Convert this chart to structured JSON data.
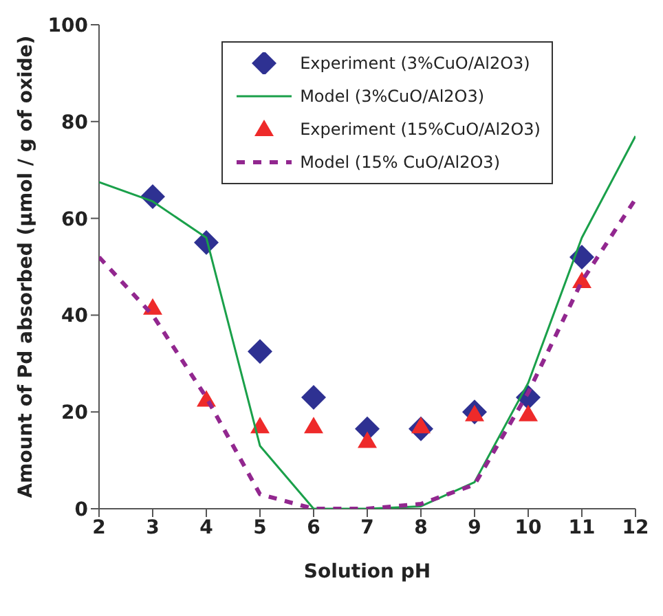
{
  "chart_data": {
    "type": "line",
    "xlabel": "Solution pH",
    "ylabel": "Amount of Pd absorbed (μmol / g of oxide)",
    "xlim": [
      2,
      12
    ],
    "xticks": [
      2,
      3,
      4,
      5,
      6,
      7,
      8,
      9,
      10,
      11,
      12
    ],
    "ylim": [
      0,
      100
    ],
    "yticks": [
      0,
      20,
      40,
      60,
      80,
      100
    ],
    "grid": false,
    "legend": "top right",
    "series": [
      {
        "name": "Experiment (3%CuO/Al2O3)",
        "type": "scatter",
        "marker": "diamond",
        "color": "#2e3192",
        "x": [
          3,
          4,
          5,
          6,
          7,
          8,
          9,
          10,
          11
        ],
        "values": [
          64.5,
          55,
          32.5,
          23,
          16.5,
          16.5,
          20,
          23,
          52
        ]
      },
      {
        "name": "Model (3%CuO/Al2O3)",
        "marker": "none",
        "line_style": "solid",
        "color": "#1aa04a",
        "x": [
          2,
          3,
          4,
          5,
          6,
          7,
          8,
          9,
          10,
          11,
          12
        ],
        "values": [
          67.5,
          63.5,
          56,
          13,
          0,
          0,
          0.5,
          5.5,
          26,
          56,
          77
        ]
      },
      {
        "name": "Experiment (15%CuO/Al2O3)",
        "type": "scatter",
        "marker": "triangle",
        "color": "#ee2a2a",
        "x": [
          3,
          4,
          5,
          6,
          7,
          8,
          9,
          10,
          11
        ],
        "values": [
          41.5,
          22.5,
          17,
          17,
          14,
          17,
          19.5,
          19.5,
          47
        ]
      },
      {
        "name": "Model (15% CuO/Al2O3)",
        "marker": "none",
        "line_style": "dashed",
        "color": "#92278f",
        "x": [
          2,
          3,
          4,
          5,
          6,
          7,
          8,
          9,
          10,
          11,
          12
        ],
        "values": [
          52,
          40,
          23,
          3,
          0,
          0,
          1,
          5,
          24,
          47,
          64
        ]
      }
    ]
  }
}
